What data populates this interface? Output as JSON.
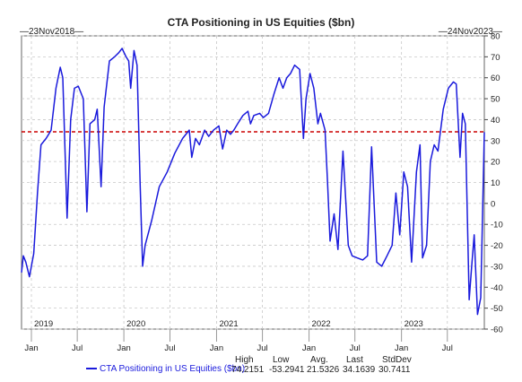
{
  "chart_data": {
    "type": "line",
    "title": "CTA Positioning in US Equities ($bn)",
    "start_label": "23Nov2018",
    "end_label": "24Nov2023",
    "ylim": [
      -60,
      80
    ],
    "yticks": [
      80,
      70,
      60,
      50,
      40,
      30,
      20,
      10,
      0,
      -10,
      -20,
      -30,
      -40,
      -50,
      -60
    ],
    "grid": true,
    "x_month_ticks": [
      "Jan",
      "Jul",
      "Jan",
      "Jul",
      "Jan",
      "Jul",
      "Jan",
      "Jul",
      "Jan",
      "Jul"
    ],
    "x_years": [
      "2019",
      "2020",
      "2021",
      "2022",
      "2023"
    ],
    "reference_line": {
      "value": 34.1639,
      "color": "#cc0000",
      "style": "dashed"
    },
    "series": [
      {
        "name": "CTA Positioning in US Equities ($bn)",
        "color": "#1a1adc",
        "points": [
          [
            "2018-11-23",
            -33
          ],
          [
            "2018-11-30",
            -25
          ],
          [
            "2018-12-10",
            -28
          ],
          [
            "2018-12-24",
            -35
          ],
          [
            "2019-01-10",
            -24
          ],
          [
            "2019-01-25",
            5
          ],
          [
            "2019-02-08",
            28
          ],
          [
            "2019-02-28",
            31
          ],
          [
            "2019-03-10",
            33
          ],
          [
            "2019-03-20",
            35
          ],
          [
            "2019-04-08",
            55
          ],
          [
            "2019-04-25",
            65
          ],
          [
            "2019-05-05",
            60
          ],
          [
            "2019-05-22",
            -7
          ],
          [
            "2019-06-05",
            40
          ],
          [
            "2019-06-20",
            55
          ],
          [
            "2019-07-05",
            56
          ],
          [
            "2019-07-25",
            50
          ],
          [
            "2019-08-08",
            -4
          ],
          [
            "2019-08-20",
            38
          ],
          [
            "2019-09-08",
            40
          ],
          [
            "2019-09-18",
            45
          ],
          [
            "2019-10-03",
            8
          ],
          [
            "2019-10-15",
            46
          ],
          [
            "2019-11-05",
            68
          ],
          [
            "2019-11-25",
            70
          ],
          [
            "2019-12-12",
            72
          ],
          [
            "2019-12-25",
            74
          ],
          [
            "2020-01-10",
            70
          ],
          [
            "2020-01-20",
            68
          ],
          [
            "2020-01-28",
            55
          ],
          [
            "2020-02-10",
            73
          ],
          [
            "2020-02-22",
            66
          ],
          [
            "2020-03-05",
            10
          ],
          [
            "2020-03-15",
            -30
          ],
          [
            "2020-03-25",
            -20
          ],
          [
            "2020-04-20",
            -8
          ],
          [
            "2020-05-20",
            8
          ],
          [
            "2020-06-20",
            15
          ],
          [
            "2020-07-20",
            24
          ],
          [
            "2020-08-20",
            31
          ],
          [
            "2020-09-15",
            35
          ],
          [
            "2020-09-25",
            22
          ],
          [
            "2020-10-10",
            31
          ],
          [
            "2020-10-25",
            28
          ],
          [
            "2020-11-15",
            35
          ],
          [
            "2020-12-01",
            32
          ],
          [
            "2020-12-20",
            35
          ],
          [
            "2021-01-10",
            37
          ],
          [
            "2021-01-25",
            26
          ],
          [
            "2021-02-10",
            35
          ],
          [
            "2021-02-25",
            33
          ],
          [
            "2021-03-10",
            35
          ],
          [
            "2021-03-25",
            38
          ],
          [
            "2021-04-15",
            42
          ],
          [
            "2021-05-05",
            44
          ],
          [
            "2021-05-15",
            38
          ],
          [
            "2021-05-28",
            42
          ],
          [
            "2021-06-20",
            43
          ],
          [
            "2021-07-05",
            41
          ],
          [
            "2021-07-25",
            43
          ],
          [
            "2021-08-15",
            52
          ],
          [
            "2021-09-05",
            60
          ],
          [
            "2021-09-20",
            55
          ],
          [
            "2021-10-05",
            60
          ],
          [
            "2021-10-20",
            62
          ],
          [
            "2021-11-05",
            66
          ],
          [
            "2021-11-25",
            64
          ],
          [
            "2021-12-10",
            31
          ],
          [
            "2021-12-20",
            50
          ],
          [
            "2022-01-05",
            62
          ],
          [
            "2022-01-20",
            55
          ],
          [
            "2022-02-05",
            38
          ],
          [
            "2022-02-15",
            43
          ],
          [
            "2022-03-05",
            35
          ],
          [
            "2022-03-15",
            10
          ],
          [
            "2022-03-25",
            -18
          ],
          [
            "2022-04-10",
            -5
          ],
          [
            "2022-04-25",
            -22
          ],
          [
            "2022-05-15",
            25
          ],
          [
            "2022-06-05",
            -20
          ],
          [
            "2022-06-20",
            -25
          ],
          [
            "2022-07-10",
            -26
          ],
          [
            "2022-08-01",
            -27
          ],
          [
            "2022-08-20",
            -25
          ],
          [
            "2022-09-05",
            27
          ],
          [
            "2022-09-25",
            -28
          ],
          [
            "2022-10-15",
            -30
          ],
          [
            "2022-11-05",
            -25
          ],
          [
            "2022-11-25",
            -20
          ],
          [
            "2022-12-10",
            5
          ],
          [
            "2022-12-25",
            -15
          ],
          [
            "2023-01-10",
            15
          ],
          [
            "2023-01-25",
            8
          ],
          [
            "2023-02-10",
            -28
          ],
          [
            "2023-03-01",
            15
          ],
          [
            "2023-03-15",
            28
          ],
          [
            "2023-03-25",
            -26
          ],
          [
            "2023-04-10",
            -20
          ],
          [
            "2023-04-25",
            20
          ],
          [
            "2023-05-10",
            28
          ],
          [
            "2023-05-25",
            25
          ],
          [
            "2023-06-15",
            45
          ],
          [
            "2023-07-05",
            55
          ],
          [
            "2023-07-25",
            58
          ],
          [
            "2023-08-05",
            57
          ],
          [
            "2023-08-20",
            22
          ],
          [
            "2023-08-30",
            43
          ],
          [
            "2023-09-10",
            38
          ],
          [
            "2023-09-25",
            -46
          ],
          [
            "2023-10-05",
            -30
          ],
          [
            "2023-10-15",
            -15
          ],
          [
            "2023-10-28",
            -53
          ],
          [
            "2023-11-10",
            -45
          ],
          [
            "2023-11-24",
            34
          ]
        ]
      }
    ],
    "stats": {
      "labels": [
        "High",
        "Low",
        "Avg.",
        "Last",
        "StdDev"
      ],
      "values": [
        "74.2151",
        "-53.2941",
        "21.5326",
        "34.1639",
        "30.7411"
      ]
    }
  }
}
